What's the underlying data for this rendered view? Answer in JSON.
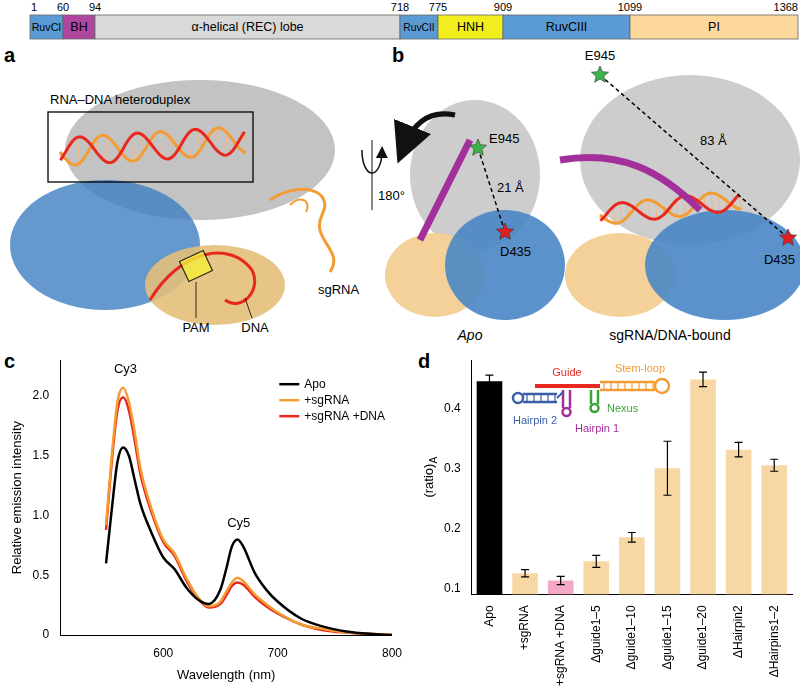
{
  "panels": [
    {
      "panel_label": "a",
      "domain_map": {
        "boundaries": [
          1,
          60,
          94,
          718,
          775,
          909,
          1099,
          1368
        ],
        "domains": [
          {
            "name": "RuvCI",
            "color": "#5b9bd5"
          },
          {
            "name": "BH",
            "color": "#b0479e"
          },
          {
            "name": "α-helical (REC) lobe",
            "color": "#d9d9d9"
          },
          {
            "name": "RuvCII",
            "color": "#5b9bd5"
          },
          {
            "name": "HNH",
            "color": "#f0ee1c"
          },
          {
            "name": "RuvCIII",
            "color": "#5b9bd5"
          },
          {
            "name": "PI",
            "color": "#fcd89c"
          }
        ]
      },
      "labels": {
        "heteroduplex": "RNA–DNA heteroduplex",
        "sgrna": "sgRNA",
        "pam": "PAM",
        "dna": "DNA",
        "rotation": "180°"
      }
    },
    {
      "panel_label": "b",
      "residues": {
        "green": "E945",
        "red": "D435"
      },
      "states": [
        {
          "name": "Apo",
          "distance": "21 Å"
        },
        {
          "name": "sgRNA/DNA-bound",
          "distance": "83 Å"
        }
      ]
    }
  ],
  "chart_data": [
    {
      "panel_label": "c",
      "type": "line",
      "xlabel": "Wavelength (nm)",
      "ylabel": "Relative emission intensity",
      "x": [
        550,
        555,
        560,
        565,
        570,
        575,
        580,
        590,
        600,
        610,
        620,
        630,
        640,
        650,
        655,
        660,
        665,
        670,
        680,
        690,
        700,
        720,
        740,
        760,
        780,
        800
      ],
      "series": [
        {
          "name": "Apo",
          "color": "#000000",
          "values": [
            0.6,
            1.05,
            1.45,
            1.57,
            1.5,
            1.3,
            1.1,
            0.85,
            0.65,
            0.55,
            0.4,
            0.3,
            0.26,
            0.38,
            0.55,
            0.74,
            0.8,
            0.74,
            0.52,
            0.38,
            0.28,
            0.14,
            0.07,
            0.03,
            0.01,
            0.0
          ]
        },
        {
          "name": "+sgRNA",
          "color": "#f39c34",
          "values": [
            0.92,
            1.5,
            1.95,
            2.07,
            1.95,
            1.7,
            1.4,
            1.05,
            0.8,
            0.68,
            0.48,
            0.32,
            0.24,
            0.28,
            0.36,
            0.44,
            0.48,
            0.45,
            0.34,
            0.26,
            0.19,
            0.09,
            0.05,
            0.02,
            0.01,
            0.0
          ]
        },
        {
          "name": "+sgRNA +DNA",
          "color": "#e8281e",
          "values": [
            0.88,
            1.45,
            1.88,
            1.99,
            1.88,
            1.63,
            1.35,
            1.02,
            0.78,
            0.66,
            0.46,
            0.31,
            0.23,
            0.26,
            0.33,
            0.41,
            0.44,
            0.42,
            0.32,
            0.24,
            0.18,
            0.09,
            0.04,
            0.02,
            0.01,
            0.0
          ]
        }
      ],
      "xlim": [
        510,
        800
      ],
      "xticks": [
        600,
        700,
        800
      ],
      "ylim": [
        0,
        2.3
      ],
      "yticks": [
        0,
        0.5,
        {
          "value": 1,
          "label": "1.0"
        },
        1.5,
        {
          "value": 2,
          "label": "2.0"
        }
      ],
      "grid": false,
      "legend": "upper right",
      "annotations": [
        {
          "text": "Cy3",
          "x": 567,
          "y": 2.17
        },
        {
          "text": "Cy5",
          "x": 666,
          "y": 0.88
        }
      ]
    },
    {
      "panel_label": "d",
      "type": "bar",
      "ylabel": "(ratio)",
      "ylabel_subscript": "A",
      "categories": [
        "Apo",
        "+sgRNA",
        "+sgRNA +DNA",
        "Δguide1–5",
        "Δguide1–10",
        "Δguide1–15",
        "Δguide1–20",
        "ΔHairpin2",
        "ΔHairpins1–2"
      ],
      "values": [
        0.445,
        0.125,
        0.113,
        0.145,
        0.185,
        0.3,
        0.448,
        0.331,
        0.305
      ],
      "errors": [
        0.01,
        0.006,
        0.007,
        0.01,
        0.008,
        0.045,
        0.012,
        0.012,
        0.01
      ],
      "colors": [
        "#000000",
        "#f7d7a3",
        "#f3a9c6",
        "#f7d7a3",
        "#f7d7a3",
        "#f7d7a3",
        "#f7d7a3",
        "#f7d7a3",
        "#f7d7a3"
      ],
      "ylim": [
        0.09,
        0.48
      ],
      "yticks": [
        0.1,
        0.2,
        0.3,
        0.4
      ],
      "grid": false,
      "inset": {
        "guide": {
          "text": "Guide",
          "color": "#e8281e"
        },
        "stem_loop": {
          "text": "Stem-loop",
          "color": "#f39c34"
        },
        "nexus": {
          "text": "Nexus",
          "color": "#3aa537"
        },
        "hairpin1": {
          "text": "Hairpin 1",
          "color": "#a3309a"
        },
        "hairpin2": {
          "text": "Hairpin 2",
          "color": "#3b5ea8"
        }
      }
    }
  ]
}
